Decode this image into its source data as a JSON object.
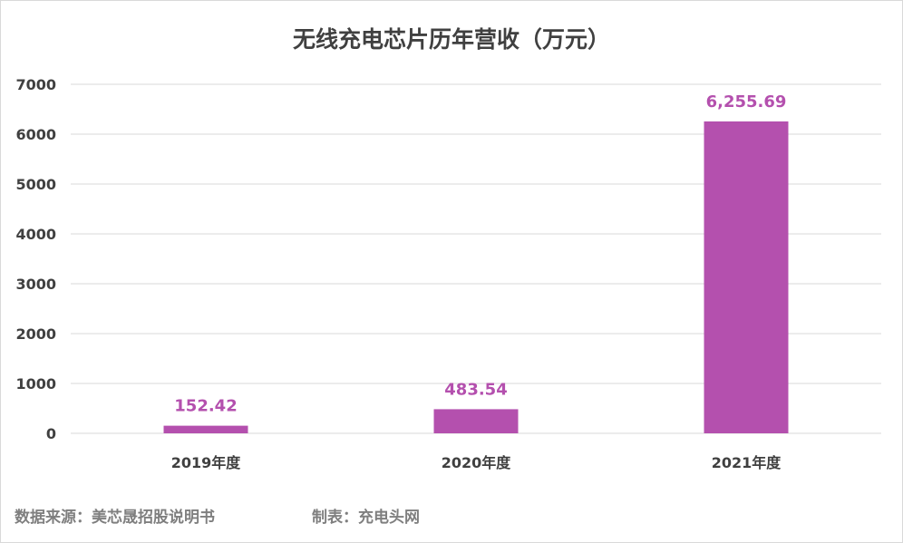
{
  "chart_data": {
    "type": "bar",
    "title": "无线充电芯片历年营收（万元）",
    "categories": [
      "2019年度",
      "2020年度",
      "2021年度"
    ],
    "values": [
      152.42,
      483.54,
      6255.69
    ],
    "data_labels": [
      "152.42",
      "483.54",
      "6,255.69"
    ],
    "ylim": [
      0,
      7000
    ],
    "yticks": [
      0,
      1000,
      2000,
      3000,
      4000,
      5000,
      6000,
      7000
    ],
    "grid": true,
    "legend": "none",
    "bar_color": "#b450ae",
    "label_color": "#b450ae"
  },
  "footer": {
    "source": "数据来源：美芯晟招股说明书",
    "maker": "制表：充电头网"
  }
}
